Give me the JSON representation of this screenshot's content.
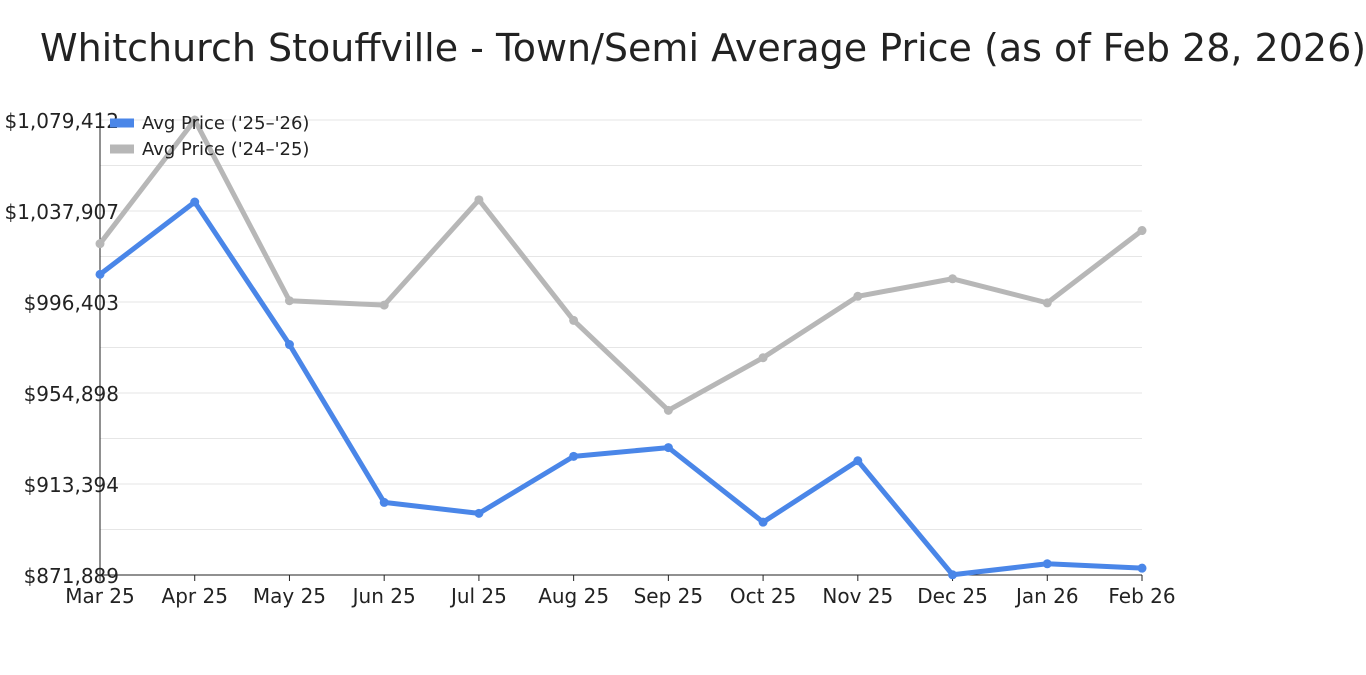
{
  "chart_data": {
    "type": "line",
    "title": "Whitchurch Stouffville - Town/Semi Average Price (as of Feb 28, 2026)",
    "categories": [
      "Mar 25",
      "Apr 25",
      "May 25",
      "Jun 25",
      "Jul 25",
      "Aug 25",
      "Sep 25",
      "Oct 25",
      "Nov 25",
      "Dec 25",
      "Jan 26",
      "Feb 26"
    ],
    "y_ticks": [
      871889,
      913394,
      954898,
      996403,
      1037907,
      1079412
    ],
    "y_tick_labels": [
      "$871,889",
      "$913,394",
      "$954,898",
      "$996,403",
      "$1,037,907",
      "$1,079,412"
    ],
    "ylim": [
      871889,
      1079412
    ],
    "grid": true,
    "legend_position": "top-left",
    "series": [
      {
        "name": "Avg Price ('25–'26)",
        "color": "#4a86e8",
        "values": [
          1009000,
          1042000,
          977000,
          905000,
          900000,
          926000,
          930000,
          896000,
          924000,
          872000,
          877000,
          875000
        ]
      },
      {
        "name": "Avg Price ('24–'25)",
        "color": "#b7b7b7",
        "values": [
          1023000,
          1079412,
          997000,
          995000,
          1043000,
          988000,
          947000,
          971000,
          999000,
          1007000,
          996000,
          1029000
        ]
      }
    ]
  }
}
